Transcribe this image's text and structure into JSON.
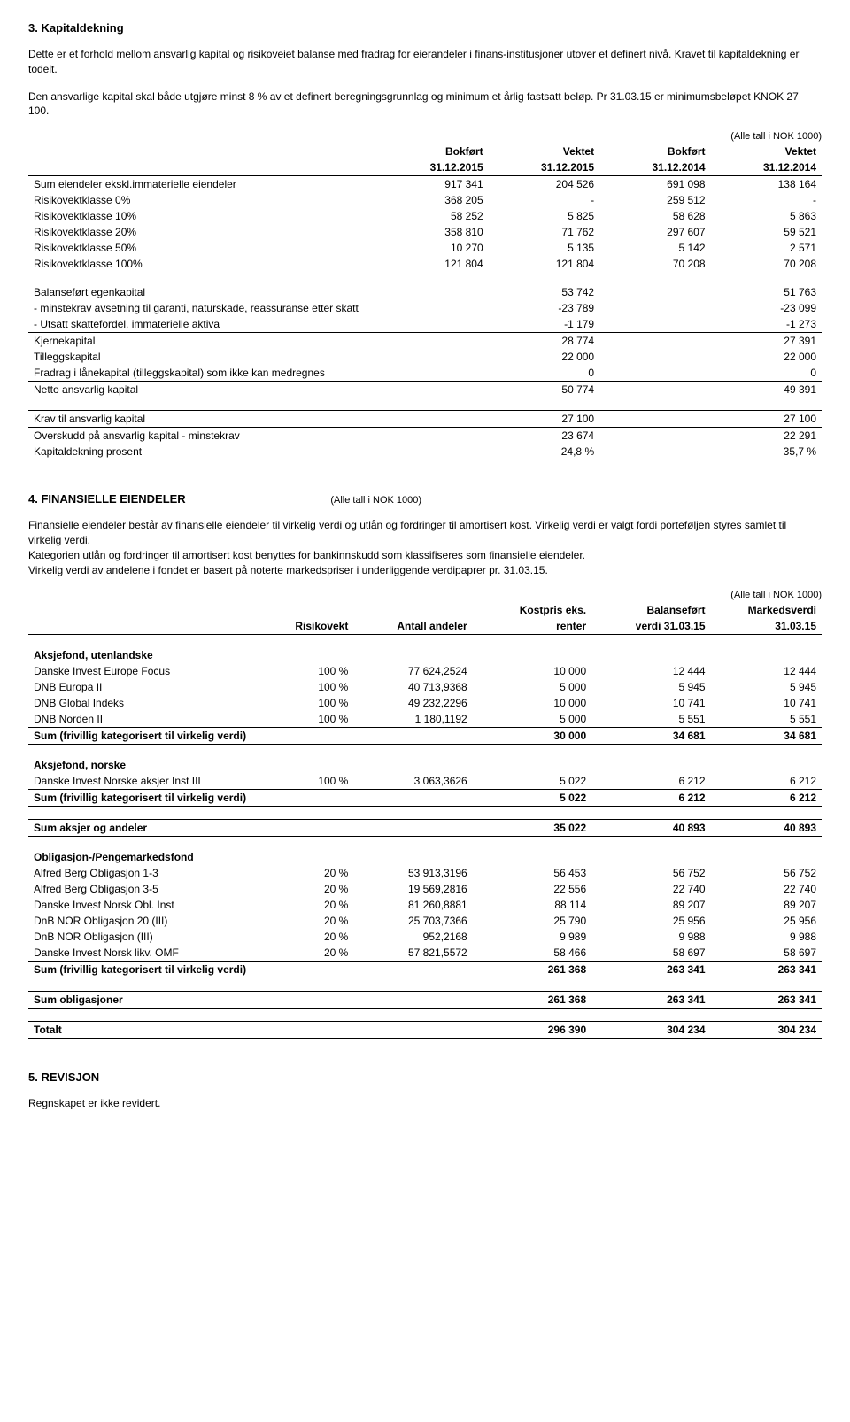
{
  "section3": {
    "title": "3. Kapitaldekning",
    "para1": "Dette er et forhold mellom ansvarlig kapital og risikoveiet balanse med fradrag for eierandeler i finans-institusjoner utover et definert nivå. Kravet til kapitaldekning er todelt.",
    "para2": "Den ansvarlige kapital skal både utgjøre minst 8 % av et definert beregningsgrunnlag og minimum et årlig fastsatt beløp. Pr 31.03.15 er minimumsbeløpet KNOK  27 100.",
    "note": "(Alle tall i NOK 1000)",
    "headers": {
      "c1": "Bokført",
      "c2": "Vektet",
      "c3": "Bokført",
      "c4": "Vektet",
      "d1": "31.12.2015",
      "d2": "31.12.2015",
      "d3": "31.12.2014",
      "d4": "31.12.2014"
    },
    "rows_a": [
      {
        "label": "Sum eiendeler ekskl.immaterielle eiendeler",
        "v": [
          "917 341",
          "204 526",
          "691 098",
          "138 164"
        ]
      },
      {
        "label": "Risikovektklasse  0%",
        "v": [
          "368 205",
          "-",
          "259 512",
          "-"
        ]
      },
      {
        "label": "Risikovektklasse  10%",
        "v": [
          "58 252",
          "5 825",
          "58 628",
          "5 863"
        ]
      },
      {
        "label": "Risikovektklasse  20%",
        "v": [
          "358 810",
          "71 762",
          "297 607",
          "59 521"
        ]
      },
      {
        "label": "Risikovektklasse  50%",
        "v": [
          "10 270",
          "5 135",
          "5 142",
          "2 571"
        ]
      },
      {
        "label": "Risikovektklasse 100%",
        "v": [
          "121 804",
          "121 804",
          "70 208",
          "70 208"
        ]
      }
    ],
    "rows_b": [
      {
        "label": "Balanseført egenkapital",
        "v2": "53 742",
        "v4": "51 763"
      },
      {
        "label": "- minstekrav avsetning til garanti, naturskade, reassuranse etter skatt",
        "v2": "-23 789",
        "v4": "-23 099"
      },
      {
        "label": "- Utsatt skattefordel, immaterielle aktiva",
        "v2": "-1 179",
        "v4": "-1 273"
      }
    ],
    "rows_c": [
      {
        "label": "Kjernekapital",
        "v2": "28 774",
        "v4": "27 391"
      },
      {
        "label": "Tilleggskapital",
        "v2": "22 000",
        "v4": "22 000"
      },
      {
        "label": "Fradrag i lånekapital (tilleggskapital) som ikke kan medregnes",
        "v2": "0",
        "v4": "0"
      }
    ],
    "netto": {
      "label": "Netto ansvarlig kapital",
      "v2": "50 774",
      "v4": "49 391"
    },
    "rows_d": [
      {
        "label": "Krav til ansvarlig kapital",
        "v2": "27 100",
        "v4": "27 100"
      }
    ],
    "rows_e": [
      {
        "label": "Overskudd på ansvarlig kapital - minstekrav",
        "v2": "23 674",
        "v4": "22 291"
      },
      {
        "label": "Kapitaldekning prosent",
        "v2": "24,8 %",
        "v4": "35,7 %"
      }
    ]
  },
  "section4": {
    "title": "4. FINANSIELLE EIENDELER",
    "title_note": "(Alle tall i NOK 1000)",
    "para1": "Finansielle eiendeler består av finansielle eiendeler til virkelig verdi og utlån og fordringer til amortisert kost. Virkelig verdi er valgt fordi porteføljen styres samlet til virkelig verdi.",
    "para2": "Kategorien utlån og fordringer til amortisert kost benyttes for bankinnskudd som klassifiseres som finansielle eiendeler.",
    "para3": "Virkelig verdi av andelene i fondet er basert på noterte markedspriser i underliggende verdipaprer pr. 31.03.15.",
    "note": "(Alle tall i NOK 1000)",
    "headers": {
      "c1": "Risikovekt",
      "c2": "Antall andeler",
      "c3a": "Kostpris eks.",
      "c3b": "renter",
      "c4a": "Balanseført",
      "c4b": "verdi 31.03.15",
      "c5a": "Markedsverdi",
      "c5b": "31.03.15"
    },
    "groups": [
      {
        "title": "Aksjefond, utenlandske",
        "rows": [
          {
            "label": "Danske Invest Europe Focus",
            "v": [
              "100 %",
              "77 624,2524",
              "10 000",
              "12 444",
              "12 444"
            ]
          },
          {
            "label": "DNB Europa II",
            "v": [
              "100 %",
              "40 713,9368",
              "5 000",
              "5 945",
              "5 945"
            ]
          },
          {
            "label": "DNB Global Indeks",
            "v": [
              "100 %",
              "49 232,2296",
              "10 000",
              "10 741",
              "10 741"
            ]
          },
          {
            "label": "DNB Norden II",
            "v": [
              "100 %",
              "1 180,1192",
              "5 000",
              "5 551",
              "5 551"
            ]
          }
        ],
        "sum": {
          "label": "Sum (frivillig kategorisert til virkelig verdi)",
          "v": [
            "",
            "",
            "30 000",
            "34 681",
            "34 681"
          ]
        }
      },
      {
        "title": "Aksjefond, norske",
        "rows": [
          {
            "label": "Danske Invest Norske aksjer Inst III",
            "v": [
              "100 %",
              "3 063,3626",
              "5 022",
              "6 212",
              "6 212"
            ]
          }
        ],
        "sum": {
          "label": "Sum (frivillig kategorisert til virkelig verdi)",
          "v": [
            "",
            "",
            "5 022",
            "6 212",
            "6 212"
          ]
        }
      }
    ],
    "sum_aksjer": {
      "label": "Sum aksjer og andeler",
      "v": [
        "",
        "",
        "35 022",
        "40 893",
        "40 893"
      ]
    },
    "group_oblig": {
      "title": "Obligasjon-/Pengemarkedsfond",
      "rows": [
        {
          "label": "Alfred Berg Obligasjon 1-3",
          "v": [
            "20 %",
            "53 913,3196",
            "56 453",
            "56 752",
            "56 752"
          ]
        },
        {
          "label": "Alfred Berg Obligasjon 3-5",
          "v": [
            "20 %",
            "19 569,2816",
            "22 556",
            "22 740",
            "22 740"
          ]
        },
        {
          "label": "Danske Invest Norsk Obl. Inst",
          "v": [
            "20 %",
            "81 260,8881",
            "88 114",
            "89 207",
            "89 207"
          ]
        },
        {
          "label": "DnB NOR Obligasjon 20 (III)",
          "v": [
            "20 %",
            "25 703,7366",
            "25 790",
            "25 956",
            "25 956"
          ]
        },
        {
          "label": "DnB NOR Obligasjon (III)",
          "v": [
            "20 %",
            "952,2168",
            "9 989",
            "9 988",
            "9 988"
          ]
        },
        {
          "label": "Danske Invest Norsk likv. OMF",
          "v": [
            "20 %",
            "57 821,5572",
            "58 466",
            "58 697",
            "58 697"
          ]
        }
      ],
      "sum": {
        "label": "Sum (frivillig kategorisert til virkelig verdi)",
        "v": [
          "",
          "",
          "261 368",
          "263 341",
          "263 341"
        ]
      }
    },
    "sum_oblig": {
      "label": "Sum obligasjoner",
      "v": [
        "",
        "",
        "261 368",
        "263 341",
        "263 341"
      ]
    },
    "totalt": {
      "label": "Totalt",
      "v": [
        "",
        "",
        "296 390",
        "304 234",
        "304 234"
      ]
    }
  },
  "section5": {
    "title": "5. REVISJON",
    "para": "Regnskapet er ikke revidert."
  }
}
